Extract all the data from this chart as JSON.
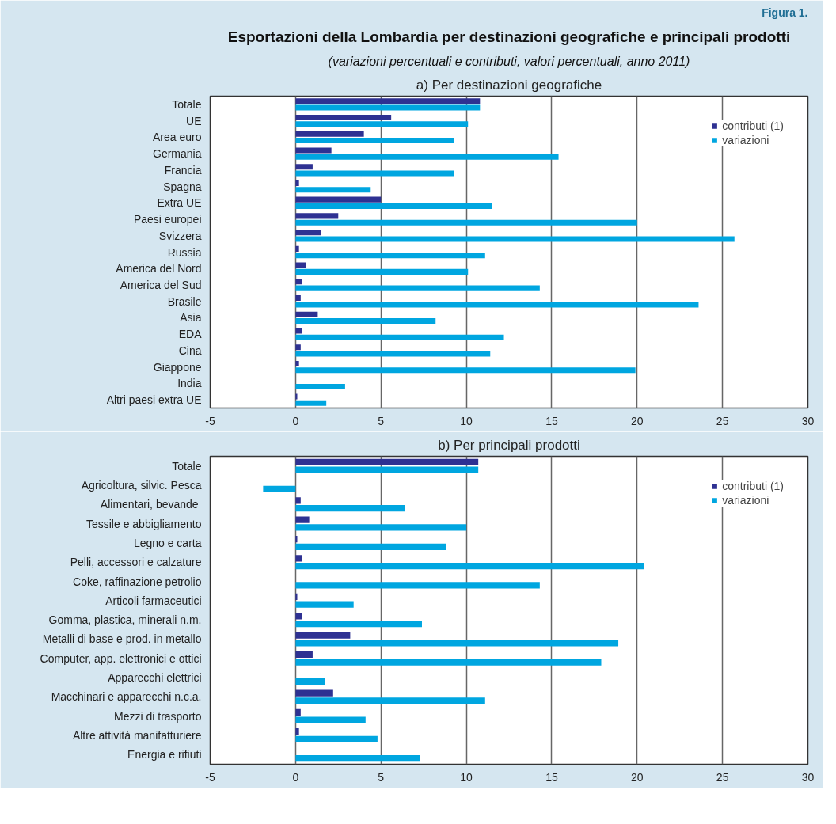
{
  "chart_data": [
    {
      "type": "bar",
      "orientation": "horizontal",
      "title": "a) Per destinazioni geografiche",
      "annotations": [
        "Figura 1.",
        "Esportazioni della Lombardia per destinazioni geografiche e principali prodotti",
        "(variazioni percentuali e contributi, valori percentuali, anno 2011)"
      ],
      "categories": [
        "Totale",
        "UE",
        "Area euro",
        "Germania",
        "Francia",
        "Spagna",
        "Extra UE",
        "Paesi europei",
        "Svizzera",
        "Russia",
        "America del Nord",
        "America del Sud",
        "Brasile",
        "Asia",
        "EDA",
        "Cina",
        "Giappone",
        "India",
        "Altri paesi extra UE"
      ],
      "series": [
        {
          "name": "contributi (1)",
          "color": "#2e3192",
          "values": [
            10.8,
            5.6,
            4.0,
            2.1,
            1.0,
            0.2,
            5.0,
            2.5,
            1.5,
            0.2,
            0.6,
            0.4,
            0.3,
            1.3,
            0.4,
            0.3,
            0.2,
            0.0,
            0.1
          ]
        },
        {
          "name": "variazioni",
          "color": "#00a6e0",
          "values": [
            10.8,
            10.1,
            9.3,
            15.4,
            9.3,
            4.4,
            11.5,
            20.0,
            25.7,
            11.1,
            10.1,
            14.3,
            23.6,
            8.2,
            12.2,
            11.4,
            19.9,
            2.9,
            1.8
          ]
        }
      ],
      "xlim": [
        -5,
        30
      ],
      "xticks": [
        -5,
        0,
        5,
        10,
        15,
        20,
        25,
        30
      ],
      "grid": "x",
      "legend": "top right"
    },
    {
      "type": "bar",
      "orientation": "horizontal",
      "title": "b) Per principali prodotti",
      "categories": [
        "Totale",
        "Agricoltura, silvic. Pesca",
        "Alimentari, bevande ",
        "Tessile e abbigliamento",
        "Legno e carta",
        "Pelli, accessori e calzature",
        "Coke, raffinazione petrolio",
        "Articoli farmaceutici",
        "Gomma, plastica, minerali n.m.",
        "Metalli di base e prod. in metallo",
        "Computer, app. elettronici e ottici",
        "Apparecchi elettrici",
        "Macchinari e apparecchi n.c.a.",
        "Mezzi di trasporto",
        "Altre attività manifatturiere",
        "Energia e rifiuti"
      ],
      "series": [
        {
          "name": "contributi (1)",
          "color": "#2e3192",
          "values": [
            10.7,
            0.0,
            0.3,
            0.8,
            0.1,
            0.4,
            0.0,
            0.1,
            0.4,
            3.2,
            1.0,
            0.0,
            2.2,
            0.3,
            0.2,
            0.0
          ]
        },
        {
          "name": "variazioni",
          "color": "#00a6e0",
          "values": [
            10.7,
            -1.9,
            6.4,
            10.0,
            8.8,
            20.4,
            14.3,
            3.4,
            7.4,
            18.9,
            17.9,
            1.7,
            11.1,
            4.1,
            4.8,
            7.3
          ]
        }
      ],
      "xlim": [
        -5,
        30
      ],
      "xticks": [
        -5,
        0,
        5,
        10,
        15,
        20,
        25,
        30
      ],
      "grid": "x",
      "legend": "top right"
    }
  ]
}
